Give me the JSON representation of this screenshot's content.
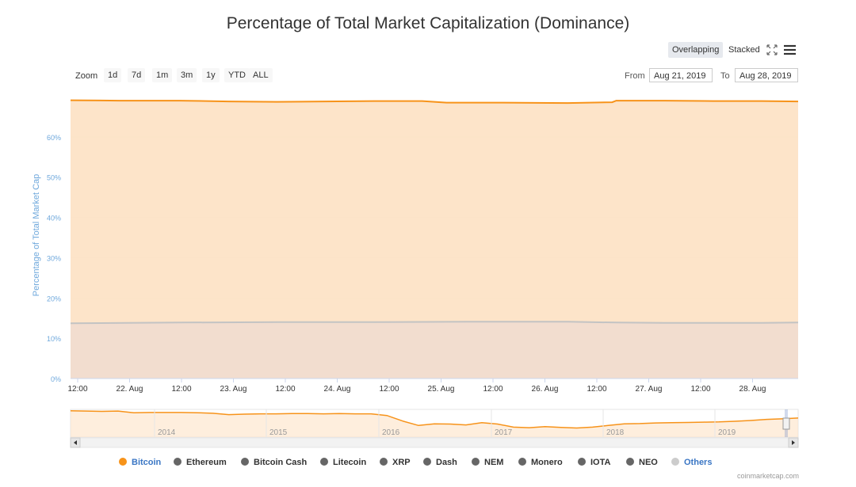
{
  "header": {
    "title": "Percentage of Total Market Capitalization (Dominance)",
    "overlapping_label": "Overlapping",
    "stacked_label": "Stacked"
  },
  "toolbar": {
    "zoom_label": "Zoom",
    "zoom_buttons": [
      "1d",
      "7d",
      "1m",
      "3m",
      "1y",
      "YTD",
      "ALL"
    ],
    "from_label": "From",
    "from_value": "Aug 21, 2019",
    "to_label": "To",
    "to_value": "Aug 28, 2019"
  },
  "footer": {
    "credits": "coinmarketcap.com"
  },
  "colors": {
    "bitcoin": "#f7931a",
    "bitcoin_fill": "#fde3c6",
    "others_line": "#c3c3c3",
    "others_fill": "#f0dcd0",
    "legend_grey": "#666666",
    "others_legend": "#cccccc",
    "axis_label": "#6fa8dc",
    "grid": "#e6e6e6"
  },
  "chart_data": {
    "type": "area",
    "ylabel": "Percentage of Total Market Cap",
    "ylim": [
      0,
      70
    ],
    "yticks": [
      0,
      10,
      20,
      30,
      40,
      50,
      60
    ],
    "ytick_labels": [
      "0%",
      "10%",
      "20%",
      "30%",
      "40%",
      "50%",
      "60%"
    ],
    "x_range": [
      "2019-08-21 09:00",
      "2019-08-28 21:00"
    ],
    "xtick_labels": [
      "12:00",
      "22. Aug",
      "12:00",
      "23. Aug",
      "12:00",
      "24. Aug",
      "12:00",
      "25. Aug",
      "12:00",
      "26. Aug",
      "12:00",
      "27. Aug",
      "12:00",
      "28. Aug"
    ],
    "grid": true,
    "series": [
      {
        "name": "Bitcoin",
        "color": "#f7931a",
        "x": [
          "2019-08-21 09:00",
          "2019-08-21 21:00",
          "2019-08-22 12:00",
          "2019-08-23 00:00",
          "2019-08-23 12:00",
          "2019-08-24 00:00",
          "2019-08-24 12:00",
          "2019-08-25 00:00",
          "2019-08-25 06:00",
          "2019-08-25 18:00",
          "2019-08-26 12:00",
          "2019-08-26 23:00",
          "2019-08-27 00:00",
          "2019-08-27 12:00",
          "2019-08-28 00:00",
          "2019-08-28 12:00",
          "2019-08-28 21:00"
        ],
        "values": [
          69.1,
          69.0,
          69.0,
          68.8,
          68.7,
          68.8,
          68.9,
          68.9,
          68.5,
          68.5,
          68.4,
          68.6,
          69.0,
          69.0,
          68.9,
          68.9,
          68.8
        ]
      },
      {
        "name": "Others",
        "color": "#c3c3c3",
        "x": [
          "2019-08-21 09:00",
          "2019-08-22 12:00",
          "2019-08-23 12:00",
          "2019-08-24 12:00",
          "2019-08-25 12:00",
          "2019-08-26 12:00",
          "2019-08-27 00:00",
          "2019-08-27 12:00",
          "2019-08-28 12:00",
          "2019-08-28 21:00"
        ],
        "values": [
          13.7,
          13.9,
          14.0,
          14.0,
          14.1,
          14.1,
          13.9,
          13.8,
          13.8,
          13.9
        ]
      }
    ],
    "navigator": {
      "year_labels": [
        "2014",
        "2015",
        "2016",
        "2017",
        "2018",
        "2019"
      ],
      "values": [
        95,
        94,
        93,
        94,
        88,
        89,
        89,
        89,
        88,
        86,
        81,
        83,
        84,
        84,
        85,
        85,
        84,
        85,
        84,
        84,
        78,
        58,
        42,
        48,
        47,
        44,
        52,
        47,
        36,
        34,
        38,
        35,
        33,
        36,
        42,
        48,
        49,
        51,
        52,
        53,
        54,
        55,
        57,
        60,
        64,
        66,
        69
      ]
    },
    "legend": [
      "Bitcoin",
      "Ethereum",
      "Bitcoin Cash",
      "Litecoin",
      "XRP",
      "Dash",
      "NEM",
      "Monero",
      "IOTA",
      "NEO",
      "Others"
    ],
    "legend_position": "bottom"
  }
}
